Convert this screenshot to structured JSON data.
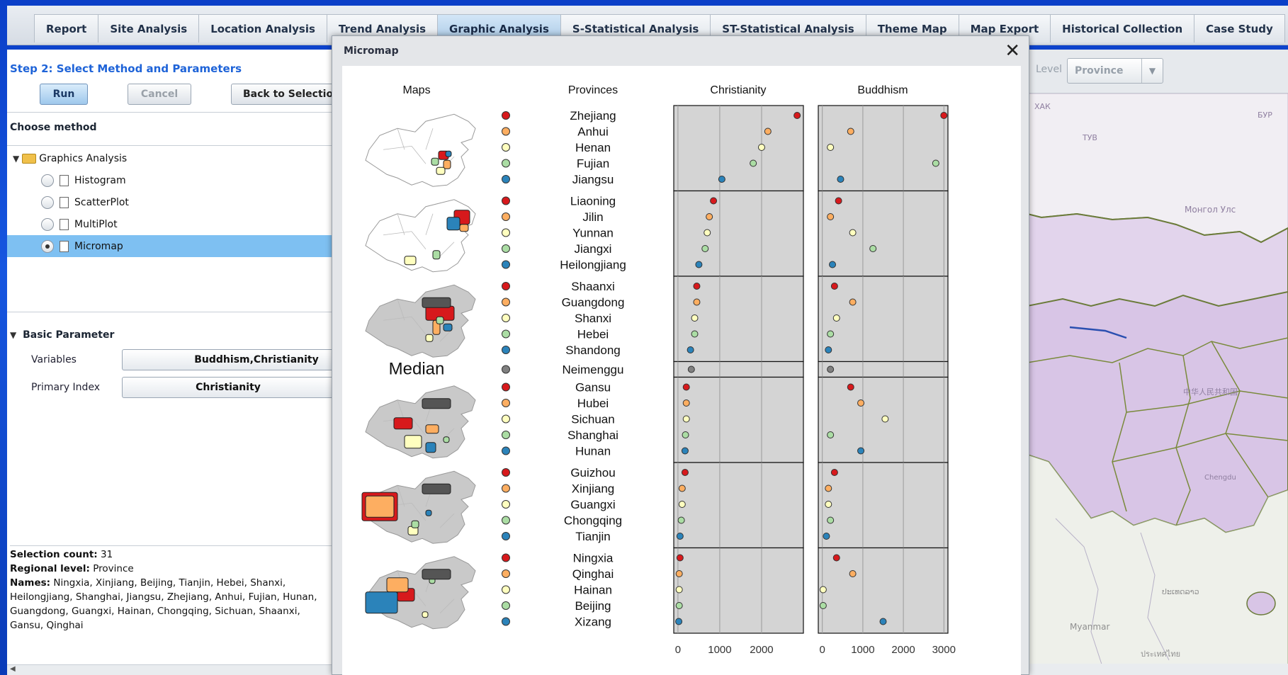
{
  "nav": {
    "tabs": [
      "Report",
      "Site Analysis",
      "Location Analysis",
      "Trend Analysis",
      "Graphic Analysis",
      "S-Statistical Analysis",
      "ST-Statistical Analysis",
      "Theme Map",
      "Map Export",
      "Historical Collection",
      "Case Study"
    ],
    "active": "Graphic Analysis"
  },
  "left": {
    "step_title": "Step 2: Select Method and Parameters",
    "run_label": "Run",
    "cancel_label": "Cancel",
    "back_label": "Back to Selection",
    "choose_method": "Choose method",
    "tree_root": "Graphics Analysis",
    "methods": [
      "Histogram",
      "ScatterPlot",
      "MultiPlot",
      "Micromap"
    ],
    "selected_method": "Micromap",
    "basic_parameter": "Basic Parameter",
    "variables_label": "Variables",
    "variables_value": "Buddhism,Christianity",
    "primary_label": "Primary Index",
    "primary_value": "Christianity",
    "selection_count_label": "Selection count:",
    "selection_count": "31",
    "regional_level_label": "Regional level:",
    "regional_level": "Province",
    "names_label": "Names:",
    "names": "Ningxia, Xinjiang, Beijing, Tianjin, Hebei, Shanxi, Heilongjiang, Shanghai, Jiangsu, Zhejiang, Anhui, Fujian, Hunan, Guangdong, Guangxi, Hainan, Chongqing, Sichuan, Shaanxi, Gansu, Qinghai"
  },
  "map": {
    "level_label": "Level",
    "level_value": "Province",
    "labels": [
      "ХАК",
      "ТУВ",
      "БУР",
      "Монгол Улс",
      "中华人民共和国",
      "Chengdu",
      "Myanmar",
      "ประเทศไทย",
      "ປະເທດລາວ"
    ]
  },
  "modal": {
    "title": "Micromap",
    "close_icon": "close-icon"
  },
  "chart_data": {
    "type": "scatter",
    "headers": [
      "Maps",
      "Provinces",
      "Christianity",
      "Buddhism"
    ],
    "median_label": "Median",
    "group_colors": [
      "#d7191c",
      "#fdae61",
      "#ffffbf",
      "#abdda4",
      "#2b83ba"
    ],
    "median_color": "#808080",
    "groups": [
      {
        "provinces": [
          "Zhejiang",
          "Anhui",
          "Henan",
          "Fujian",
          "Jiangsu"
        ],
        "christianity": [
          2850,
          2150,
          2000,
          1800,
          1050
        ],
        "buddhism": [
          3000,
          700,
          200,
          2800,
          450
        ]
      },
      {
        "provinces": [
          "Liaoning",
          "Jilin",
          "Yunnan",
          "Jiangxi",
          "Heilongjiang"
        ],
        "christianity": [
          850,
          750,
          700,
          650,
          500
        ],
        "buddhism": [
          400,
          200,
          750,
          1250,
          250
        ]
      },
      {
        "provinces": [
          "Shaanxi",
          "Guangdong",
          "Shanxi",
          "Hebei",
          "Shandong"
        ],
        "christianity": [
          450,
          450,
          400,
          400,
          300
        ],
        "buddhism": [
          300,
          750,
          350,
          200,
          150
        ]
      },
      {
        "provinces": [
          "Neimenggu"
        ],
        "christianity": [
          320
        ],
        "buddhism": [
          200
        ],
        "median": true
      },
      {
        "provinces": [
          "Gansu",
          "Hubei",
          "Sichuan",
          "Shanghai",
          "Hunan"
        ],
        "christianity": [
          200,
          200,
          200,
          180,
          170
        ],
        "buddhism": [
          700,
          950,
          1550,
          200,
          950
        ]
      },
      {
        "provinces": [
          "Guizhou",
          "Xinjiang",
          "Guangxi",
          "Chongqing",
          "Tianjin"
        ],
        "christianity": [
          170,
          100,
          100,
          80,
          50
        ],
        "buddhism": [
          300,
          150,
          150,
          200,
          100
        ]
      },
      {
        "provinces": [
          "Ningxia",
          "Qinghai",
          "Hainan",
          "Beijing",
          "Xizang"
        ],
        "christianity": [
          50,
          30,
          30,
          30,
          20
        ],
        "buddhism": [
          350,
          750,
          20,
          20,
          1500
        ]
      }
    ],
    "panels": [
      {
        "name": "Christianity",
        "xlim": [
          -100,
          3000
        ],
        "ticks": [
          0,
          1000,
          2000
        ]
      },
      {
        "name": "Buddhism",
        "xlim": [
          -100,
          3100
        ],
        "ticks": [
          0,
          1000,
          2000,
          3000
        ]
      }
    ]
  }
}
